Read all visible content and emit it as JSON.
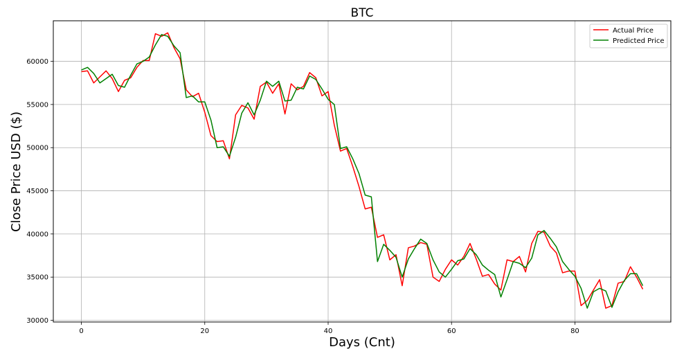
{
  "chart_data": {
    "type": "line",
    "title": "BTC",
    "xlabel": "Days (Cnt)",
    "ylabel": "Close Price USD ($)",
    "xlim": [
      -4.55,
      95.55
    ],
    "ylim": [
      29800,
      64700
    ],
    "x_ticks": [
      0,
      20,
      40,
      60,
      80
    ],
    "y_ticks": [
      30000,
      35000,
      40000,
      45000,
      50000,
      55000,
      60000
    ],
    "x_tick_labels": [
      "0",
      "20",
      "40",
      "60",
      "80"
    ],
    "y_tick_labels": [
      "30000",
      "35000",
      "40000",
      "45000",
      "50000",
      "55000",
      "60000"
    ],
    "grid": true,
    "legend_position": "top-right",
    "x": [
      0,
      1,
      2,
      3,
      4,
      5,
      6,
      7,
      8,
      9,
      10,
      11,
      12,
      13,
      14,
      15,
      16,
      17,
      18,
      19,
      20,
      21,
      22,
      23,
      24,
      25,
      26,
      27,
      28,
      29,
      30,
      31,
      32,
      33,
      34,
      35,
      36,
      37,
      38,
      39,
      40,
      41,
      42,
      43,
      44,
      45,
      46,
      47,
      48,
      49,
      50,
      51,
      52,
      53,
      54,
      55,
      56,
      57,
      58,
      59,
      60,
      61,
      62,
      63,
      64,
      65,
      66,
      67,
      68,
      69,
      70,
      71,
      72,
      73,
      74,
      75,
      76,
      77,
      78,
      79,
      80,
      81,
      82,
      83,
      84,
      85,
      86,
      87,
      88,
      89,
      90,
      91
    ],
    "series": [
      {
        "name": "Actual Price",
        "color": "#ff0000",
        "values": [
          58800,
          58900,
          57500,
          58200,
          58900,
          58000,
          56500,
          57800,
          58100,
          59300,
          60100,
          60100,
          63200,
          62900,
          63300,
          61600,
          60300,
          56700,
          55900,
          56300,
          54100,
          51400,
          50700,
          50800,
          48700,
          53800,
          54900,
          54600,
          53300,
          57100,
          57600,
          56300,
          57400,
          53900,
          57400,
          56700,
          57100,
          58700,
          58100,
          56000,
          56500,
          52600,
          49600,
          49900,
          47800,
          45500,
          42900,
          43100,
          39600,
          39900,
          37000,
          37600,
          34000,
          38400,
          38600,
          39000,
          38800,
          35000,
          34500,
          35900,
          37000,
          36400,
          37400,
          38900,
          37100,
          35100,
          35300,
          34200,
          33500,
          37000,
          36800,
          37400,
          35600,
          38900,
          40300,
          40200,
          38600,
          37800,
          35500,
          35700,
          35700,
          31700,
          32300,
          33500,
          34700,
          31400,
          31700,
          34300,
          34500,
          36200,
          35000,
          33600
        ]
      },
      {
        "name": "Predicted Price",
        "color": "#008000",
        "values": [
          59000,
          59300,
          58600,
          57500,
          58000,
          58500,
          57200,
          57000,
          58400,
          59700,
          60000,
          60500,
          61900,
          63100,
          62900,
          61800,
          61000,
          55800,
          56000,
          55300,
          55300,
          53200,
          50000,
          50100,
          49000,
          51200,
          54000,
          55200,
          53800,
          55500,
          57700,
          57100,
          57700,
          55400,
          55500,
          57000,
          56800,
          58300,
          57900,
          56800,
          55600,
          55000,
          49900,
          50100,
          48700,
          47000,
          44500,
          44300,
          36800,
          38800,
          38100,
          37300,
          35000,
          37100,
          38300,
          39400,
          38900,
          37000,
          35600,
          35000,
          35900,
          36900,
          37100,
          38300,
          37600,
          36400,
          35800,
          35300,
          32700,
          34700,
          36800,
          36600,
          36100,
          37200,
          39900,
          40400,
          39500,
          38500,
          36800,
          35900,
          35100,
          33700,
          31400,
          33300,
          33700,
          33400,
          31500,
          33300,
          34600,
          35400,
          35400,
          34000
        ]
      }
    ]
  }
}
